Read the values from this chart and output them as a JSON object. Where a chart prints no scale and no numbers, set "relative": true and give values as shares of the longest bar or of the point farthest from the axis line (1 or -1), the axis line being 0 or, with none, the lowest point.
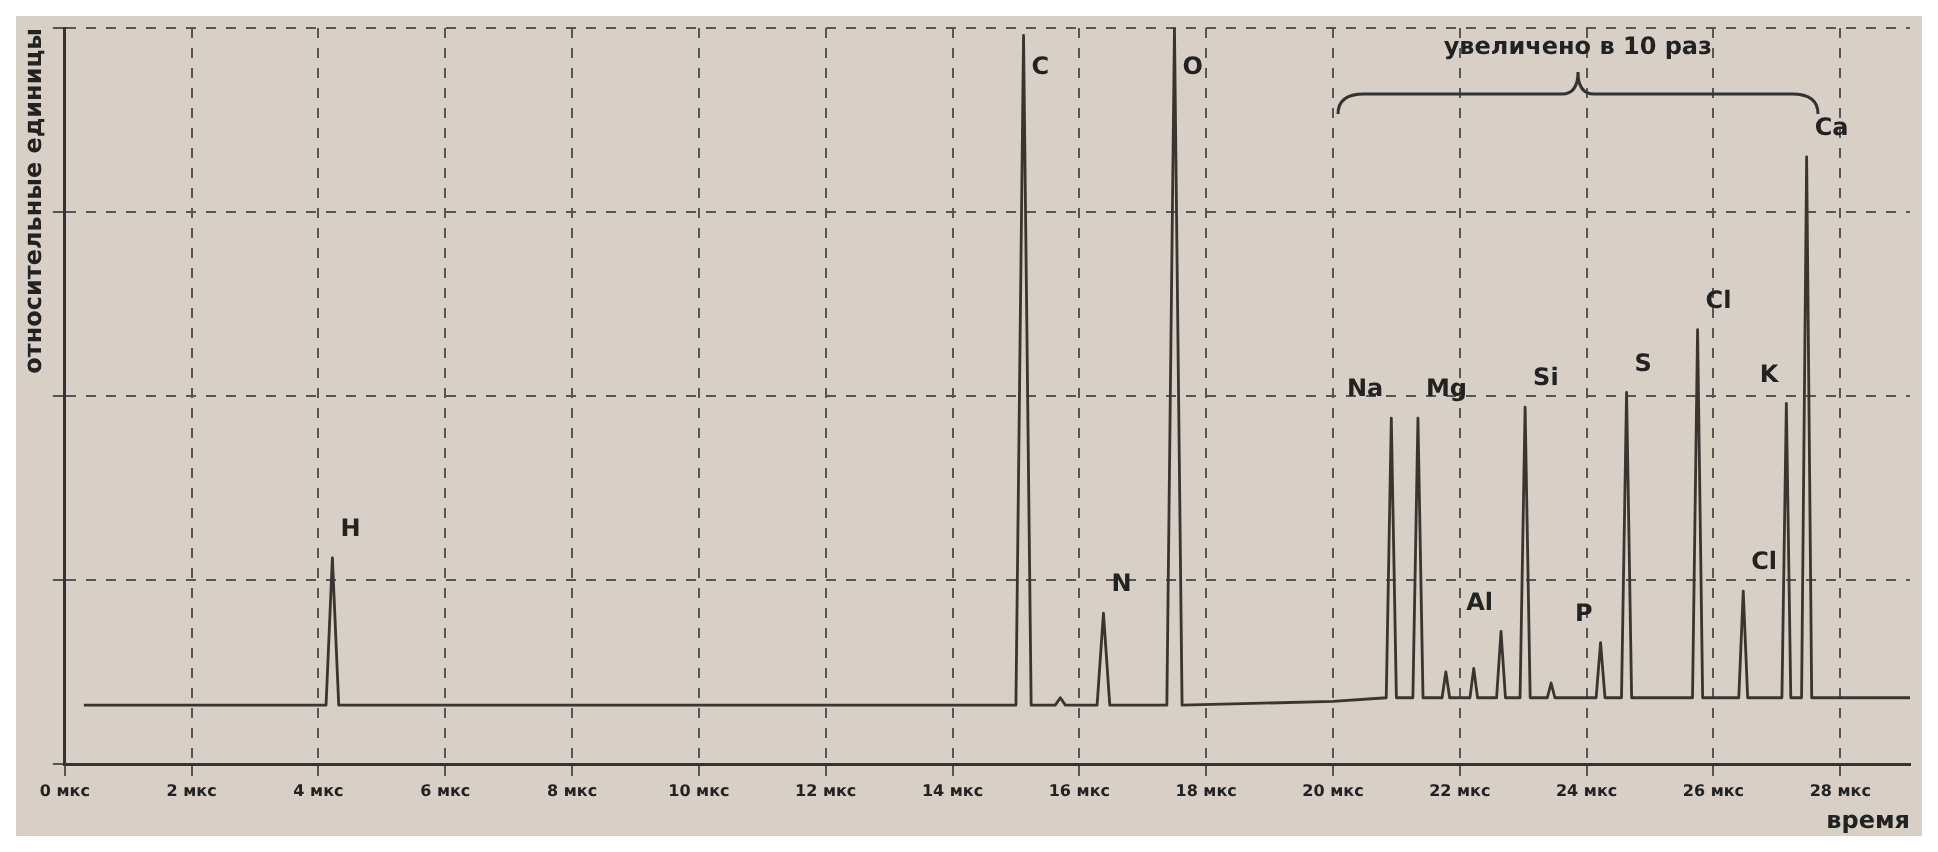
{
  "chart_data": {
    "type": "line",
    "xlabel": "время",
    "ylabel": "относительные единицы",
    "relative": true,
    "xlim": [
      0,
      29.1
    ],
    "xticks": [
      {
        "value": 0,
        "label": "0 мкс"
      },
      {
        "value": 2,
        "label": "2 мкс"
      },
      {
        "value": 4,
        "label": "4 мкс"
      },
      {
        "value": 6,
        "label": "6 мкс"
      },
      {
        "value": 8,
        "label": "8 мкс"
      },
      {
        "value": 10,
        "label": "10 мкс"
      },
      {
        "value": 12,
        "label": "12 мкс"
      },
      {
        "value": 14,
        "label": "14 мкс"
      },
      {
        "value": 16,
        "label": "16 мкс"
      },
      {
        "value": 18,
        "label": "18 мкс"
      },
      {
        "value": 20,
        "label": "20 мкс"
      },
      {
        "value": 22,
        "label": "22 мкс"
      },
      {
        "value": 24,
        "label": "24 мкс"
      },
      {
        "value": 26,
        "label": "26 мкс"
      },
      {
        "value": 28,
        "label": "28 мкс"
      }
    ],
    "grid": true,
    "line_style": "solid",
    "marker": "none",
    "series": [
      {
        "color": "#3a3530",
        "x": [
          0.3,
          4.12,
          4.22,
          4.32,
          15.0,
          15.12,
          15.24,
          15.62,
          15.7,
          15.78,
          16.28,
          16.38,
          16.48,
          17.38,
          17.5,
          17.62,
          20.0,
          20.84,
          20.92,
          21.0,
          21.26,
          21.34,
          21.42,
          21.72,
          21.78,
          21.84,
          22.16,
          22.22,
          22.28,
          22.58,
          22.65,
          22.72,
          22.95,
          23.03,
          23.11,
          23.38,
          23.44,
          23.5,
          24.15,
          24.22,
          24.29,
          24.55,
          24.63,
          24.71,
          25.67,
          25.75,
          25.83,
          26.4,
          26.47,
          26.54,
          27.08,
          27.15,
          27.22,
          27.39,
          27.47,
          27.55,
          29.1
        ],
        "values": [
          0.08,
          0.08,
          0.28,
          0.08,
          0.08,
          0.99,
          0.08,
          0.08,
          0.09,
          0.08,
          0.08,
          0.205,
          0.08,
          0.08,
          1,
          0.08,
          0.085,
          0.09,
          0.47,
          0.09,
          0.09,
          0.47,
          0.09,
          0.09,
          0.125,
          0.09,
          0.09,
          0.13,
          0.09,
          0.09,
          0.18,
          0.09,
          0.09,
          0.485,
          0.09,
          0.09,
          0.11,
          0.09,
          0.09,
          0.165,
          0.09,
          0.09,
          0.505,
          0.09,
          0.09,
          0.59,
          0.09,
          0.09,
          0.235,
          0.09,
          0.09,
          0.49,
          0.09,
          0.09,
          0.825,
          0.09,
          0.09
        ]
      }
    ],
    "annotations": [
      {
        "text": "H",
        "x": 4.22,
        "y": 0.28
      },
      {
        "text": "C",
        "x": 15.12,
        "y": 0.99
      },
      {
        "text": "N",
        "x": 16.38,
        "y": 0.205
      },
      {
        "text": "O",
        "x": 17.5,
        "y": 1
      },
      {
        "text": "Na",
        "x": 20.92,
        "y": 0.47
      },
      {
        "text": "Mg",
        "x": 21.34,
        "y": 0.47
      },
      {
        "text": "Al",
        "x": 22.65,
        "y": 0.18
      },
      {
        "text": "Si",
        "x": 23.03,
        "y": 0.485
      },
      {
        "text": "P",
        "x": 24.22,
        "y": 0.165
      },
      {
        "text": "S",
        "x": 24.63,
        "y": 0.505
      },
      {
        "text": "Cl",
        "x": 25.75,
        "y": 0.59
      },
      {
        "text": "Cl",
        "x": 26.47,
        "y": 0.235
      },
      {
        "text": "K",
        "x": 27.15,
        "y": 0.49
      },
      {
        "text": "Ca",
        "x": 27.47,
        "y": 0.825
      },
      "увеличено в 10 раз"
    ]
  }
}
